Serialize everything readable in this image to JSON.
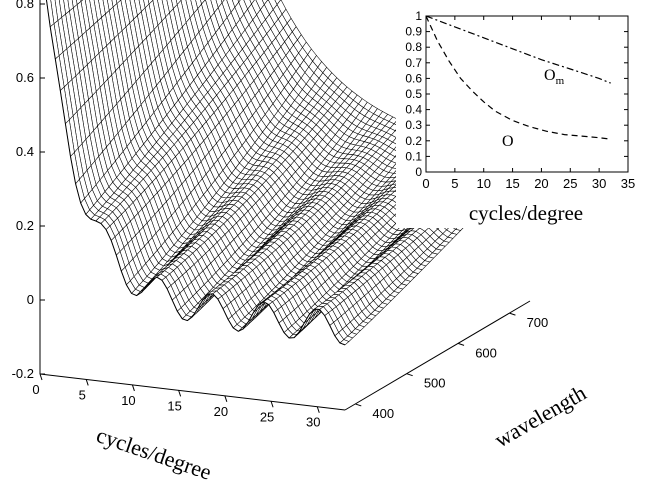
{
  "chart_data": [
    {
      "type": "surface",
      "xlabel": "cycles/degree",
      "ylabel": "wavelength",
      "x_ticks": [
        "0",
        "5",
        "10",
        "15",
        "20",
        "25",
        "30"
      ],
      "y_ticks": [
        "400",
        "500",
        "600",
        "700"
      ],
      "z_ticks": [
        "-0.2",
        "0",
        "0.2",
        "0.4",
        "0.6",
        "0.8"
      ],
      "xlim": [
        0,
        33
      ],
      "ylim": [
        380,
        740
      ],
      "zlim": [
        -0.2,
        1.0
      ],
      "surface_description": "Mesh surface: value near 0.9-1.0 at 0 cycles/degree across all wavelengths, decaying with spatial frequency to about 0.1-0.2 at 32 cycles/degree for long wavelengths and to about 0 with ripples for short wavelengths"
    },
    {
      "type": "line",
      "xlabel": "cycles/degree",
      "ylabel": "",
      "xlim": [
        0,
        35
      ],
      "ylim": [
        0,
        1
      ],
      "x_ticks": [
        "0",
        "5",
        "10",
        "15",
        "20",
        "25",
        "30",
        "35"
      ],
      "y_ticks": [
        "0",
        "0.1",
        "0.2",
        "0.3",
        "0.4",
        "0.5",
        "0.6",
        "0.7",
        "0.8",
        "0.9",
        "1"
      ],
      "series": [
        {
          "name": "Om",
          "label_main": "O",
          "label_sub": "m",
          "style": "dash-dot",
          "x": [
            0,
            5,
            10,
            15,
            20,
            25,
            30,
            32
          ],
          "y": [
            1.0,
            0.93,
            0.86,
            0.79,
            0.72,
            0.66,
            0.6,
            0.57
          ]
        },
        {
          "name": "O",
          "label_main": "O",
          "label_sub": "",
          "style": "dashed",
          "x": [
            0,
            2,
            4,
            6,
            8,
            10,
            12,
            15,
            18,
            21,
            24,
            27,
            30,
            32
          ],
          "y": [
            1.0,
            0.84,
            0.71,
            0.6,
            0.52,
            0.45,
            0.39,
            0.33,
            0.29,
            0.26,
            0.24,
            0.23,
            0.22,
            0.21
          ]
        }
      ]
    }
  ]
}
